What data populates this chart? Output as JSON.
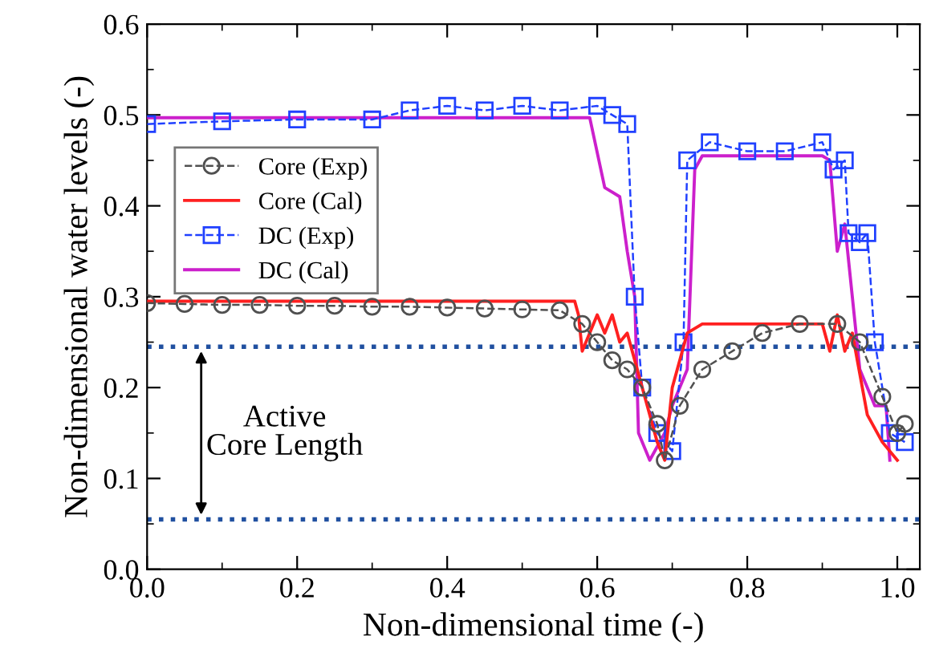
{
  "chart_data": {
    "type": "line",
    "xlabel": "Non-dimensional time (-)",
    "ylabel": "Non-dimensional water levels (-)",
    "xlim": [
      0,
      1.03
    ],
    "ylim": [
      0,
      0.6
    ],
    "xticks": [
      {
        "value": 0,
        "label": "0.0"
      },
      {
        "value": 0.2,
        "label": "0.2"
      },
      {
        "value": 0.4,
        "label": "0.4"
      },
      {
        "value": 0.6,
        "label": "0.6"
      },
      {
        "value": 0.8,
        "label": "0.8"
      },
      {
        "value": 1.0,
        "label": "1.0"
      }
    ],
    "yticks": [
      {
        "value": 0,
        "label": "0.0"
      },
      {
        "value": 0.1,
        "label": "0.1"
      },
      {
        "value": 0.2,
        "label": "0.2"
      },
      {
        "value": 0.3,
        "label": "0.3"
      },
      {
        "value": 0.4,
        "label": "0.4"
      },
      {
        "value": 0.5,
        "label": "0.5"
      },
      {
        "value": 0.6,
        "label": "0.6"
      }
    ],
    "grid": false,
    "legend": "left",
    "series": [
      {
        "name": "Core (Exp)",
        "color": "#505050",
        "marker": "circle",
        "line_style": "dashed",
        "x": [
          0,
          0.05,
          0.1,
          0.15,
          0.2,
          0.25,
          0.3,
          0.35,
          0.4,
          0.45,
          0.5,
          0.55,
          0.58,
          0.6,
          0.62,
          0.64,
          0.66,
          0.68,
          0.69,
          0.71,
          0.74,
          0.78,
          0.82,
          0.87,
          0.92,
          0.95,
          0.98,
          1.0,
          1.01
        ],
        "values": [
          0.293,
          0.292,
          0.291,
          0.291,
          0.29,
          0.29,
          0.289,
          0.289,
          0.288,
          0.287,
          0.286,
          0.285,
          0.27,
          0.25,
          0.23,
          0.22,
          0.2,
          0.16,
          0.12,
          0.18,
          0.22,
          0.24,
          0.26,
          0.27,
          0.27,
          0.25,
          0.19,
          0.15,
          0.16
        ]
      },
      {
        "name": "Core (Cal)",
        "color": "#ff2020",
        "marker": "none",
        "line_style": "solid",
        "x": [
          0,
          0.57,
          0.575,
          0.58,
          0.6,
          0.61,
          0.62,
          0.63,
          0.64,
          0.66,
          0.68,
          0.69,
          0.7,
          0.72,
          0.74,
          0.8,
          0.9,
          0.91,
          0.92,
          0.93,
          0.94,
          0.96,
          0.98,
          1.0
        ],
        "values": [
          0.295,
          0.295,
          0.28,
          0.24,
          0.28,
          0.26,
          0.28,
          0.25,
          0.26,
          0.2,
          0.14,
          0.12,
          0.2,
          0.26,
          0.27,
          0.27,
          0.27,
          0.24,
          0.28,
          0.24,
          0.26,
          0.17,
          0.14,
          0.12
        ]
      },
      {
        "name": "DC (Exp)",
        "color": "#2040ff",
        "marker": "square",
        "line_style": "dashed",
        "x": [
          0,
          0.1,
          0.2,
          0.3,
          0.35,
          0.4,
          0.45,
          0.5,
          0.55,
          0.6,
          0.62,
          0.64,
          0.65,
          0.66,
          0.68,
          0.7,
          0.715,
          0.72,
          0.75,
          0.8,
          0.85,
          0.9,
          0.915,
          0.93,
          0.935,
          0.95,
          0.96,
          0.97,
          0.99,
          1.01
        ],
        "values": [
          0.49,
          0.493,
          0.495,
          0.495,
          0.505,
          0.51,
          0.505,
          0.51,
          0.505,
          0.51,
          0.5,
          0.49,
          0.3,
          0.2,
          0.15,
          0.13,
          0.25,
          0.45,
          0.47,
          0.46,
          0.46,
          0.47,
          0.44,
          0.45,
          0.37,
          0.36,
          0.37,
          0.25,
          0.15,
          0.14
        ]
      },
      {
        "name": "DC (Cal)",
        "color": "#cc20cc",
        "marker": "none",
        "line_style": "solid",
        "x": [
          0,
          0.59,
          0.61,
          0.63,
          0.64,
          0.65,
          0.655,
          0.67,
          0.69,
          0.7,
          0.72,
          0.73,
          0.74,
          0.9,
          0.91,
          0.92,
          0.93,
          0.95,
          0.97,
          0.985,
          0.99
        ],
        "values": [
          0.497,
          0.497,
          0.42,
          0.41,
          0.35,
          0.3,
          0.15,
          0.12,
          0.15,
          0.18,
          0.22,
          0.44,
          0.455,
          0.455,
          0.45,
          0.35,
          0.38,
          0.22,
          0.18,
          0.18,
          0.12
        ]
      }
    ],
    "ref_lines": [
      {
        "axis": "y",
        "value": 0.245,
        "label": null,
        "color": "#2050a0",
        "line_style": "dotted"
      },
      {
        "axis": "y",
        "value": 0.055,
        "label": null,
        "color": "#2050a0",
        "line_style": "dotted"
      }
    ],
    "annotations": [
      "Active\nCore Length"
    ]
  }
}
